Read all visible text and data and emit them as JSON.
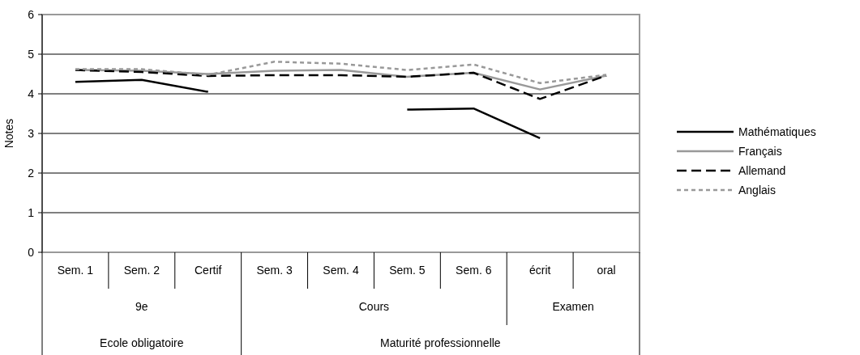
{
  "chart_data": {
    "type": "line",
    "ylabel": "Notes",
    "categories": [
      "Sem. 1",
      "Sem. 2",
      "Certif",
      "Sem. 3",
      "Sem. 4",
      "Sem. 5",
      "Sem. 6",
      "écrit",
      "oral"
    ],
    "annotations": [
      "9e",
      "Cours",
      "Examen",
      "Ecole obligatoire",
      "Maturité professionnelle"
    ],
    "series": [
      {
        "name": "Mathématiques",
        "color": "#000000",
        "line_style": "solid",
        "values": [
          4.3,
          4.35,
          4.05,
          null,
          null,
          3.6,
          3.63,
          2.88,
          null
        ]
      },
      {
        "name": "Français",
        "color": "#999999",
        "line_style": "solid",
        "values": [
          4.6,
          4.58,
          4.5,
          4.58,
          4.6,
          4.43,
          4.53,
          4.11,
          4.46
        ]
      },
      {
        "name": "Allemand",
        "color": "#000000",
        "line_style": "dashed",
        "values": [
          4.6,
          4.55,
          4.45,
          4.47,
          4.47,
          4.43,
          4.53,
          3.87,
          4.46
        ]
      },
      {
        "name": "Anglais",
        "color": "#999999",
        "line_style": "dotted",
        "values": [
          4.62,
          4.62,
          4.48,
          4.81,
          4.76,
          4.6,
          4.74,
          4.27,
          4.48
        ]
      }
    ],
    "ylim": [
      0,
      6
    ],
    "yticks": [
      0,
      1,
      2,
      3,
      4,
      5,
      6
    ],
    "grid": "y",
    "legend": "right",
    "marker": "none"
  }
}
